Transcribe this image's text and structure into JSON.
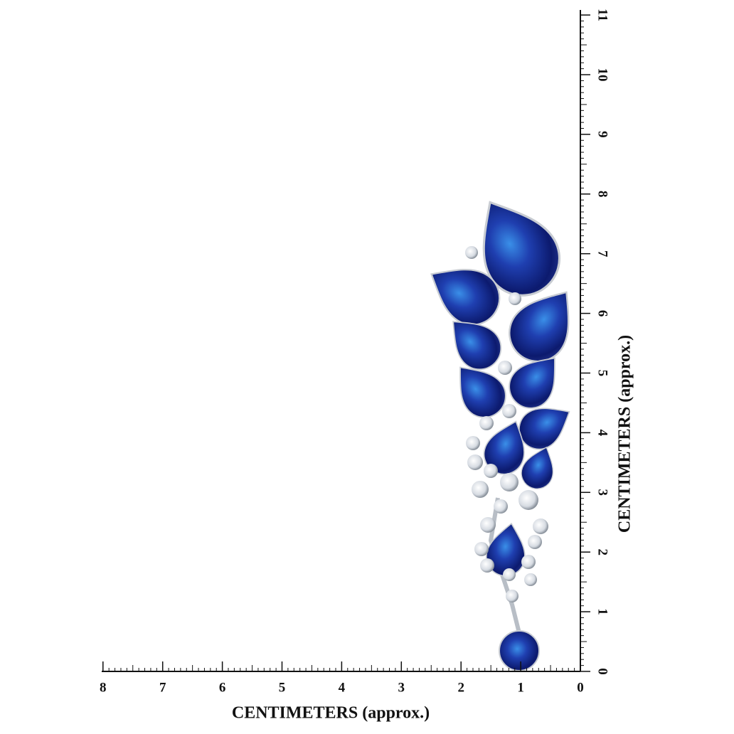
{
  "x_ruler": {
    "label": "CENTIMETERS (approx.)",
    "ticks": [
      8,
      7,
      6,
      5,
      4,
      3,
      2,
      1,
      0
    ]
  },
  "y_ruler": {
    "label": "CENTIMETERS (approx.)",
    "ticks": [
      0,
      1,
      2,
      3,
      4,
      5,
      6,
      7,
      8,
      9,
      10,
      11
    ]
  }
}
